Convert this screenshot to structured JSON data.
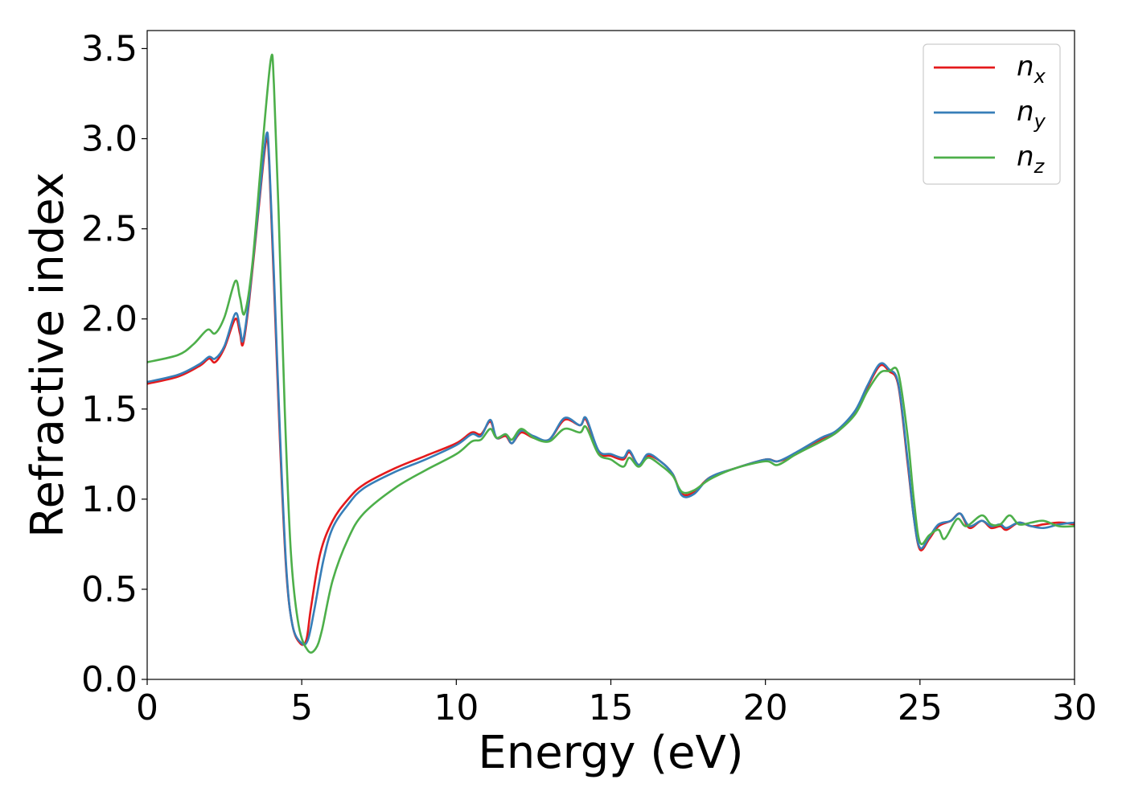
{
  "chart_data": {
    "type": "line",
    "title": "",
    "xlabel": "Energy (eV)",
    "ylabel": "Refractive index",
    "xlim": [
      0,
      30
    ],
    "ylim": [
      0,
      3.6
    ],
    "xticks": [
      0,
      5,
      10,
      15,
      20,
      25,
      30
    ],
    "yticks": [
      0.0,
      0.5,
      1.0,
      1.5,
      2.0,
      2.5,
      3.0,
      3.5
    ],
    "xtick_labels": [
      "0",
      "5",
      "10",
      "15",
      "20",
      "25",
      "30"
    ],
    "ytick_labels": [
      "0.0",
      "0.5",
      "1.0",
      "1.5",
      "2.0",
      "2.5",
      "3.0",
      "3.5"
    ],
    "grid": false,
    "legend_position": "top-right",
    "series": [
      {
        "name": "n_x",
        "label_base": "n",
        "label_sub": "x",
        "color": "#e41a1c",
        "points": [
          [
            0,
            1.64
          ],
          [
            1,
            1.68
          ],
          [
            1.7,
            1.74
          ],
          [
            2,
            1.78
          ],
          [
            2.2,
            1.76
          ],
          [
            2.5,
            1.84
          ],
          [
            2.85,
            2.0
          ],
          [
            3.0,
            1.92
          ],
          [
            3.1,
            1.86
          ],
          [
            3.3,
            2.1
          ],
          [
            3.6,
            2.6
          ],
          [
            3.85,
            2.99
          ],
          [
            3.95,
            2.85
          ],
          [
            4.1,
            2.2
          ],
          [
            4.3,
            1.3
          ],
          [
            4.5,
            0.6
          ],
          [
            4.7,
            0.3
          ],
          [
            4.95,
            0.2
          ],
          [
            5.15,
            0.22
          ],
          [
            5.3,
            0.4
          ],
          [
            5.6,
            0.7
          ],
          [
            6,
            0.88
          ],
          [
            6.5,
            1.0
          ],
          [
            7,
            1.08
          ],
          [
            8,
            1.17
          ],
          [
            9,
            1.24
          ],
          [
            10,
            1.31
          ],
          [
            10.5,
            1.37
          ],
          [
            10.8,
            1.36
          ],
          [
            11.1,
            1.43
          ],
          [
            11.3,
            1.34
          ],
          [
            11.6,
            1.35
          ],
          [
            11.8,
            1.31
          ],
          [
            12.1,
            1.37
          ],
          [
            12.5,
            1.34
          ],
          [
            13,
            1.33
          ],
          [
            13.5,
            1.44
          ],
          [
            14,
            1.41
          ],
          [
            14.2,
            1.44
          ],
          [
            14.6,
            1.26
          ],
          [
            15,
            1.24
          ],
          [
            15.4,
            1.22
          ],
          [
            15.6,
            1.26
          ],
          [
            15.9,
            1.19
          ],
          [
            16.2,
            1.24
          ],
          [
            16.6,
            1.21
          ],
          [
            17,
            1.14
          ],
          [
            17.3,
            1.03
          ],
          [
            17.7,
            1.04
          ],
          [
            18.2,
            1.12
          ],
          [
            19,
            1.17
          ],
          [
            20,
            1.22
          ],
          [
            20.4,
            1.21
          ],
          [
            21,
            1.25
          ],
          [
            21.8,
            1.33
          ],
          [
            22.3,
            1.37
          ],
          [
            22.9,
            1.48
          ],
          [
            23.3,
            1.62
          ],
          [
            23.7,
            1.74
          ],
          [
            24.0,
            1.71
          ],
          [
            24.3,
            1.63
          ],
          [
            24.6,
            1.2
          ],
          [
            24.8,
            0.9
          ],
          [
            25.0,
            0.72
          ],
          [
            25.3,
            0.78
          ],
          [
            25.6,
            0.85
          ],
          [
            26,
            0.88
          ],
          [
            26.3,
            0.92
          ],
          [
            26.6,
            0.84
          ],
          [
            27,
            0.88
          ],
          [
            27.3,
            0.84
          ],
          [
            27.6,
            0.85
          ],
          [
            27.8,
            0.83
          ],
          [
            28.2,
            0.87
          ],
          [
            28.6,
            0.85
          ],
          [
            29,
            0.86
          ],
          [
            29.5,
            0.87
          ],
          [
            30,
            0.86
          ]
        ]
      },
      {
        "name": "n_y",
        "label_base": "n",
        "label_sub": "y",
        "color": "#377eb8",
        "points": [
          [
            0,
            1.65
          ],
          [
            1,
            1.69
          ],
          [
            1.7,
            1.75
          ],
          [
            2,
            1.79
          ],
          [
            2.2,
            1.78
          ],
          [
            2.5,
            1.85
          ],
          [
            2.85,
            2.03
          ],
          [
            3.0,
            1.95
          ],
          [
            3.1,
            1.88
          ],
          [
            3.3,
            2.12
          ],
          [
            3.6,
            2.62
          ],
          [
            3.85,
            3.02
          ],
          [
            3.95,
            2.88
          ],
          [
            4.1,
            2.25
          ],
          [
            4.3,
            1.35
          ],
          [
            4.5,
            0.62
          ],
          [
            4.7,
            0.3
          ],
          [
            5.0,
            0.2
          ],
          [
            5.2,
            0.22
          ],
          [
            5.4,
            0.38
          ],
          [
            5.7,
            0.66
          ],
          [
            6,
            0.84
          ],
          [
            6.5,
            0.97
          ],
          [
            7,
            1.06
          ],
          [
            8,
            1.15
          ],
          [
            9,
            1.22
          ],
          [
            10,
            1.3
          ],
          [
            10.5,
            1.36
          ],
          [
            10.8,
            1.35
          ],
          [
            11.1,
            1.44
          ],
          [
            11.3,
            1.34
          ],
          [
            11.6,
            1.36
          ],
          [
            11.8,
            1.31
          ],
          [
            12.1,
            1.38
          ],
          [
            12.5,
            1.35
          ],
          [
            13,
            1.33
          ],
          [
            13.5,
            1.45
          ],
          [
            14,
            1.41
          ],
          [
            14.2,
            1.45
          ],
          [
            14.6,
            1.27
          ],
          [
            15,
            1.25
          ],
          [
            15.4,
            1.23
          ],
          [
            15.6,
            1.27
          ],
          [
            15.9,
            1.19
          ],
          [
            16.2,
            1.25
          ],
          [
            16.6,
            1.21
          ],
          [
            17,
            1.14
          ],
          [
            17.3,
            1.02
          ],
          [
            17.7,
            1.03
          ],
          [
            18.2,
            1.12
          ],
          [
            19,
            1.17
          ],
          [
            20,
            1.22
          ],
          [
            20.4,
            1.21
          ],
          [
            21,
            1.26
          ],
          [
            21.8,
            1.34
          ],
          [
            22.3,
            1.38
          ],
          [
            22.9,
            1.49
          ],
          [
            23.3,
            1.63
          ],
          [
            23.7,
            1.75
          ],
          [
            24.0,
            1.72
          ],
          [
            24.3,
            1.64
          ],
          [
            24.6,
            1.22
          ],
          [
            24.8,
            0.9
          ],
          [
            25.0,
            0.73
          ],
          [
            25.3,
            0.79
          ],
          [
            25.6,
            0.86
          ],
          [
            26,
            0.88
          ],
          [
            26.3,
            0.92
          ],
          [
            26.6,
            0.85
          ],
          [
            27,
            0.88
          ],
          [
            27.3,
            0.85
          ],
          [
            27.6,
            0.86
          ],
          [
            27.8,
            0.84
          ],
          [
            28.2,
            0.87
          ],
          [
            28.6,
            0.85
          ],
          [
            29,
            0.84
          ],
          [
            29.5,
            0.86
          ],
          [
            30,
            0.87
          ]
        ]
      },
      {
        "name": "n_z",
        "label_base": "n",
        "label_sub": "z",
        "color": "#4daf4a",
        "points": [
          [
            0,
            1.76
          ],
          [
            1,
            1.8
          ],
          [
            1.5,
            1.86
          ],
          [
            1.95,
            1.94
          ],
          [
            2.2,
            1.92
          ],
          [
            2.5,
            2.01
          ],
          [
            2.85,
            2.21
          ],
          [
            3.0,
            2.12
          ],
          [
            3.15,
            2.03
          ],
          [
            3.4,
            2.3
          ],
          [
            3.7,
            2.9
          ],
          [
            4.0,
            3.44
          ],
          [
            4.1,
            3.3
          ],
          [
            4.25,
            2.6
          ],
          [
            4.45,
            1.5
          ],
          [
            4.65,
            0.7
          ],
          [
            4.9,
            0.3
          ],
          [
            5.2,
            0.16
          ],
          [
            5.45,
            0.17
          ],
          [
            5.65,
            0.27
          ],
          [
            6,
            0.55
          ],
          [
            6.5,
            0.78
          ],
          [
            7,
            0.92
          ],
          [
            8,
            1.06
          ],
          [
            9,
            1.16
          ],
          [
            10,
            1.25
          ],
          [
            10.5,
            1.32
          ],
          [
            10.8,
            1.33
          ],
          [
            11.1,
            1.39
          ],
          [
            11.3,
            1.34
          ],
          [
            11.6,
            1.36
          ],
          [
            11.8,
            1.33
          ],
          [
            12.1,
            1.39
          ],
          [
            12.5,
            1.34
          ],
          [
            13,
            1.32
          ],
          [
            13.5,
            1.39
          ],
          [
            14,
            1.37
          ],
          [
            14.2,
            1.4
          ],
          [
            14.6,
            1.25
          ],
          [
            15,
            1.22
          ],
          [
            15.4,
            1.18
          ],
          [
            15.6,
            1.23
          ],
          [
            15.9,
            1.18
          ],
          [
            16.2,
            1.23
          ],
          [
            16.6,
            1.19
          ],
          [
            17,
            1.13
          ],
          [
            17.3,
            1.04
          ],
          [
            17.7,
            1.05
          ],
          [
            18.2,
            1.11
          ],
          [
            19,
            1.17
          ],
          [
            20,
            1.21
          ],
          [
            20.4,
            1.19
          ],
          [
            21,
            1.25
          ],
          [
            21.8,
            1.32
          ],
          [
            22.3,
            1.37
          ],
          [
            22.9,
            1.47
          ],
          [
            23.3,
            1.6
          ],
          [
            23.7,
            1.7
          ],
          [
            24.0,
            1.71
          ],
          [
            24.3,
            1.7
          ],
          [
            24.6,
            1.35
          ],
          [
            24.8,
            1.0
          ],
          [
            25.0,
            0.76
          ],
          [
            25.3,
            0.8
          ],
          [
            25.6,
            0.83
          ],
          [
            25.8,
            0.78
          ],
          [
            26.2,
            0.89
          ],
          [
            26.5,
            0.85
          ],
          [
            27,
            0.91
          ],
          [
            27.3,
            0.86
          ],
          [
            27.6,
            0.86
          ],
          [
            27.9,
            0.91
          ],
          [
            28.2,
            0.86
          ],
          [
            28.6,
            0.87
          ],
          [
            29,
            0.88
          ],
          [
            29.5,
            0.85
          ],
          [
            30,
            0.85
          ]
        ]
      }
    ]
  }
}
